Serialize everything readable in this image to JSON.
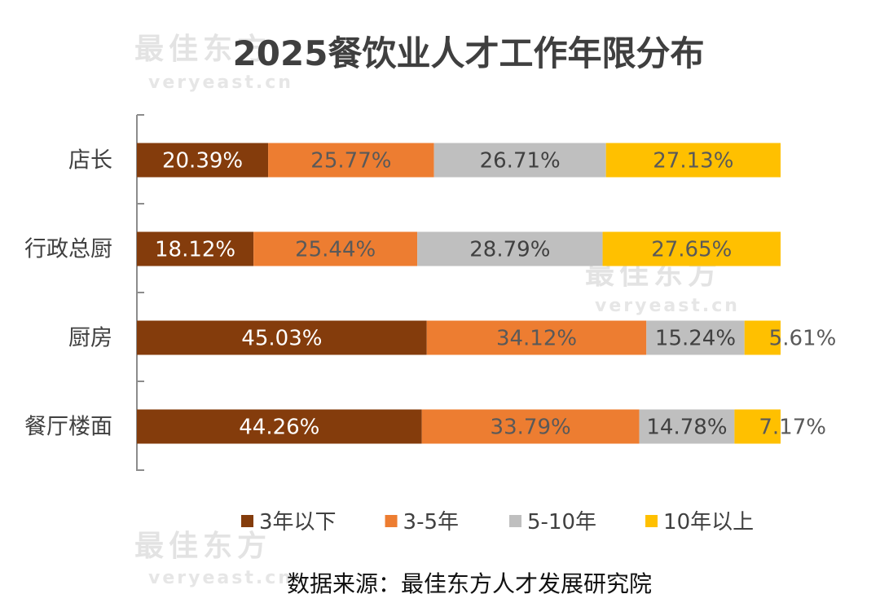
{
  "watermark": {
    "cn": "最佳东方",
    "en": "veryeast.cn"
  },
  "chart_data": {
    "type": "bar",
    "orientation": "horizontal",
    "stacked": true,
    "title": "2025餐饮业人才工作年限分布",
    "categories": [
      "店长",
      "行政总厨",
      "厨房",
      "餐厅楼面"
    ],
    "xlim": [
      0,
      100
    ],
    "grid": false,
    "legend_position": "bottom",
    "series": [
      {
        "name": "3年以下",
        "color": "#843c0c",
        "label_color": "#ffffff",
        "values": [
          20.39,
          18.12,
          45.03,
          44.26
        ],
        "labels": [
          "20.39%",
          "18.12%",
          "45.03%",
          "44.26%"
        ]
      },
      {
        "name": "3-5年",
        "color": "#ed7d31",
        "label_color": "#595959",
        "values": [
          25.77,
          25.44,
          34.12,
          33.79
        ],
        "labels": [
          "25.77%",
          "25.44%",
          "34.12%",
          "33.79%"
        ]
      },
      {
        "name": "5-10年",
        "color": "#bfbfbf",
        "label_color": "#404040",
        "values": [
          26.71,
          28.79,
          15.24,
          14.78
        ],
        "labels": [
          "26.71%",
          "28.79%",
          "15.24%",
          "14.78%"
        ]
      },
      {
        "name": "10年以上",
        "color": "#ffc000",
        "label_color": "#595959",
        "values": [
          27.13,
          27.65,
          5.61,
          7.17
        ],
        "labels": [
          "27.13%",
          "27.65%",
          "5.61%",
          "7.17%"
        ]
      }
    ],
    "source": "数据来源：最佳东方人才发展研究院"
  }
}
